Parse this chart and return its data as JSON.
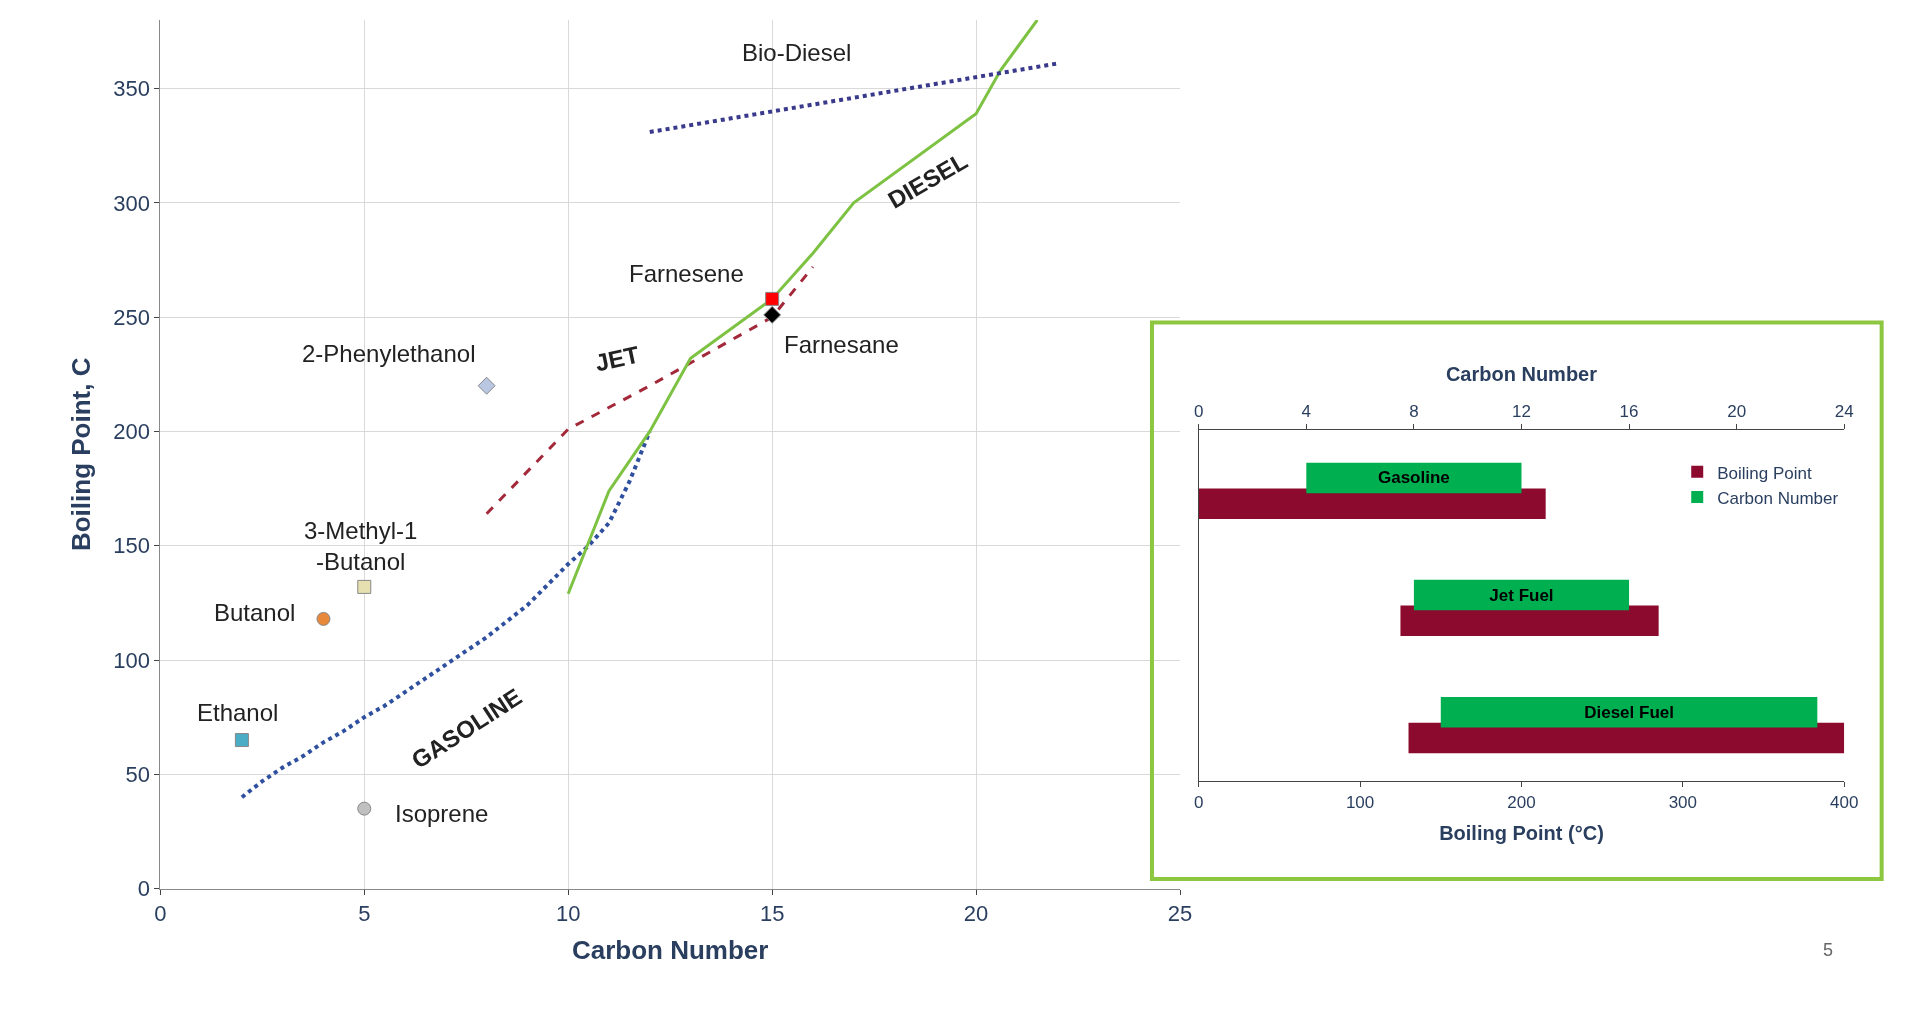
{
  "chart_data": [
    {
      "type": "line",
      "xlabel": "Carbon Number",
      "ylabel": "Boiling Point, C",
      "xlim": [
        0,
        25
      ],
      "ylim": [
        0,
        380
      ],
      "xticks": [
        0,
        5,
        10,
        15,
        20,
        25
      ],
      "yticks": [
        0,
        50,
        100,
        150,
        200,
        250,
        300,
        350
      ],
      "grid": true,
      "legend": false,
      "series": [
        {
          "name": "GASOLINE",
          "line_style": "dotted",
          "color": "#2f4f9f",
          "x": [
            2,
            2.5,
            3,
            3.5,
            4,
            4.5,
            5,
            5.5,
            6,
            6.5,
            7,
            7.5,
            8,
            8.5,
            9,
            9.5,
            10,
            10.5,
            11,
            11.5,
            12
          ],
          "values": [
            40,
            47,
            53,
            58,
            64,
            69,
            75,
            80,
            86,
            92,
            98,
            104,
            110,
            117,
            124,
            133,
            142,
            150,
            160,
            178,
            200
          ]
        },
        {
          "name": "JET",
          "line_style": "dashed",
          "color": "#a3283a",
          "x": [
            8,
            10,
            12,
            15,
            16
          ],
          "values": [
            164,
            201,
            220,
            250,
            272
          ]
        },
        {
          "name": "DIESEL",
          "line_style": "solid",
          "color": "#7dc242",
          "x": [
            10,
            11,
            12,
            13,
            15,
            16,
            17,
            20,
            20.6,
            21.5
          ],
          "values": [
            129,
            174,
            200,
            232,
            258,
            278,
            300,
            339,
            358,
            380
          ]
        },
        {
          "name": "Bio-Diesel",
          "line_style": "dotted",
          "color": "#3a3a8c",
          "x": [
            12,
            22
          ],
          "values": [
            331,
            361
          ]
        },
        {
          "name": "Ethanol",
          "type": "scatter",
          "marker": "square",
          "color": "#4bacc6",
          "x": [
            2
          ],
          "values": [
            65
          ]
        },
        {
          "name": "Butanol",
          "type": "scatter",
          "marker": "circle",
          "color": "#e8883a",
          "x": [
            4
          ],
          "values": [
            118
          ]
        },
        {
          "name": "3-Methyl-1\n-Butanol",
          "type": "scatter",
          "marker": "square",
          "color": "#e6e0b0",
          "x": [
            5
          ],
          "values": [
            132
          ]
        },
        {
          "name": "Isoprene",
          "type": "scatter",
          "marker": "circle",
          "color": "#c0c0c0",
          "x": [
            5
          ],
          "values": [
            35
          ]
        },
        {
          "name": "2-Phenylethanol",
          "type": "scatter",
          "marker": "diamond",
          "color": "#b9c7e3",
          "x": [
            8
          ],
          "values": [
            220
          ]
        },
        {
          "name": "Farnesene",
          "type": "scatter",
          "marker": "square",
          "color": "#ff0000",
          "x": [
            15
          ],
          "values": [
            258
          ]
        },
        {
          "name": "Farnesane",
          "type": "scatter",
          "marker": "diamond",
          "color": "#000000",
          "x": [
            15
          ],
          "values": [
            251
          ]
        }
      ],
      "annotations": [
        "5"
      ]
    },
    {
      "type": "bar",
      "orientation": "horizontal",
      "categories": [
        "Gasoline",
        "Jet Fuel",
        "Diesel Fuel"
      ],
      "xlabel": "Boiling Point (°C)",
      "x2label": "Carbon Number",
      "xlim": [
        0,
        400
      ],
      "xticks": [
        0,
        100,
        200,
        300,
        400
      ],
      "x2lim": [
        0,
        24
      ],
      "x2ticks": [
        0,
        4,
        8,
        12,
        16,
        20,
        24
      ],
      "tick_labels": "x",
      "legend": "top right",
      "series": [
        {
          "name": "Boiling Point",
          "color": "#8b0a2e",
          "base": [
            0,
            125,
            130
          ],
          "values": [
            215,
            160,
            270
          ]
        },
        {
          "name": "Carbon Number",
          "color": "#00b050",
          "axis": "x2",
          "base": [
            4,
            8,
            9
          ],
          "values": [
            8,
            8,
            14
          ]
        }
      ]
    }
  ]
}
